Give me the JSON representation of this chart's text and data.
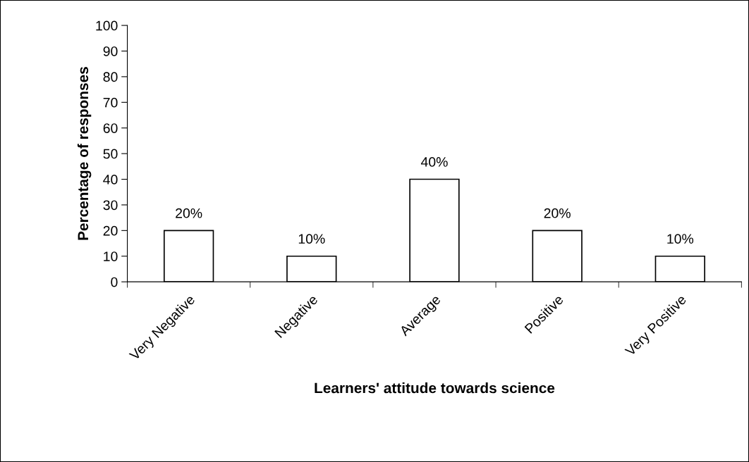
{
  "chart_data": {
    "type": "bar",
    "categories": [
      "Very Negative",
      "Negative",
      "Average",
      "Positive",
      "Very Positive"
    ],
    "values": [
      20,
      10,
      40,
      20,
      10
    ],
    "value_labels": [
      "20%",
      "10%",
      "40%",
      "20%",
      "10%"
    ],
    "color": "#ffffff",
    "xlabel": "Learners' attitude towards science",
    "ylabel": "Percentage of responses",
    "ylim": [
      0,
      100
    ],
    "yticks": [
      0,
      10,
      20,
      30,
      40,
      50,
      60,
      70,
      80,
      90,
      100
    ],
    "grid": false,
    "legend": false
  }
}
